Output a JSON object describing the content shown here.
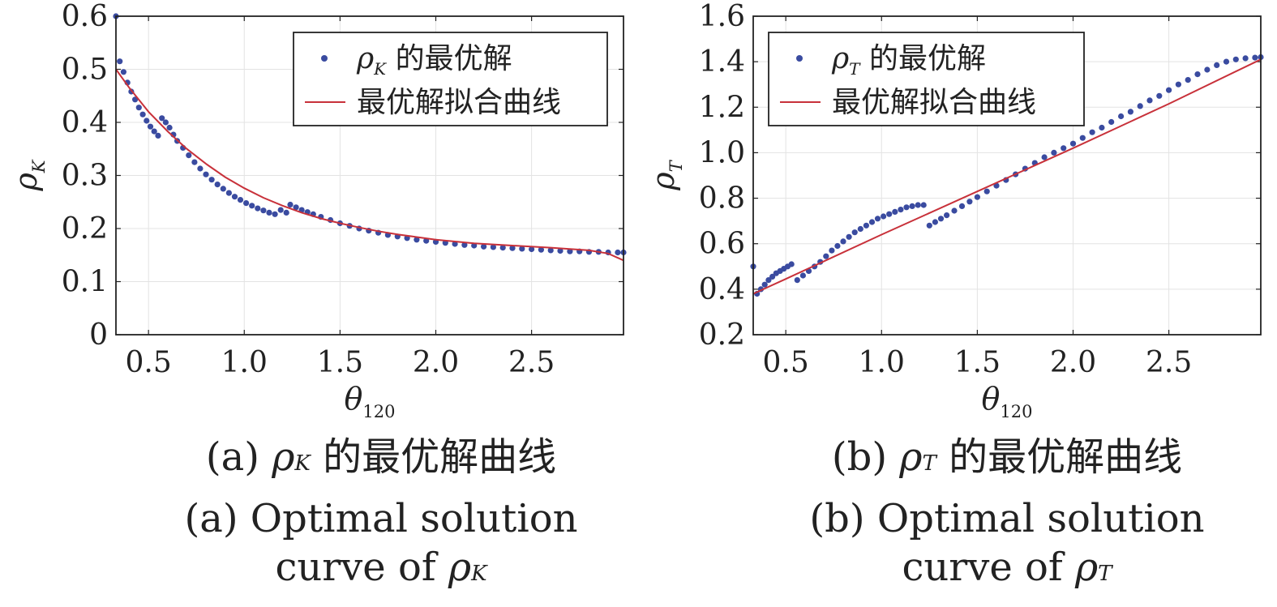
{
  "chart_data": [
    {
      "type": "scatter",
      "xlabel": "θ120",
      "ylabel": "ρK",
      "xlim": [
        0.33,
        2.98
      ],
      "ylim": [
        0,
        0.6
      ],
      "xticks": [
        "0.5",
        "1.0",
        "1.5",
        "2.0",
        "2.5"
      ],
      "yticks": [
        "0",
        "0.1",
        "0.2",
        "0.3",
        "0.4",
        "0.5",
        "0.6"
      ],
      "grid": true,
      "legend_position": "top-right",
      "legend": [
        "ρK 的最优解",
        "最优解拟合曲线"
      ],
      "series": [
        {
          "name": "ρK 的最优解",
          "kind": "scatter",
          "color": "#3a4ba0",
          "x": [
            0.33,
            0.35,
            0.37,
            0.39,
            0.41,
            0.43,
            0.45,
            0.47,
            0.49,
            0.51,
            0.53,
            0.55,
            0.57,
            0.59,
            0.61,
            0.63,
            0.65,
            0.68,
            0.71,
            0.74,
            0.77,
            0.8,
            0.83,
            0.86,
            0.89,
            0.92,
            0.95,
            0.98,
            1.01,
            1.04,
            1.07,
            1.1,
            1.13,
            1.16,
            1.19,
            1.22,
            1.24,
            1.27,
            1.3,
            1.33,
            1.36,
            1.4,
            1.45,
            1.5,
            1.55,
            1.6,
            1.65,
            1.7,
            1.75,
            1.8,
            1.85,
            1.9,
            1.95,
            2.0,
            2.05,
            2.1,
            2.15,
            2.2,
            2.25,
            2.3,
            2.35,
            2.4,
            2.45,
            2.5,
            2.55,
            2.6,
            2.65,
            2.7,
            2.75,
            2.8,
            2.85,
            2.9,
            2.95,
            2.98
          ],
          "y": [
            0.6,
            0.515,
            0.495,
            0.475,
            0.458,
            0.443,
            0.428,
            0.415,
            0.403,
            0.392,
            0.383,
            0.375,
            0.408,
            0.4,
            0.39,
            0.377,
            0.365,
            0.352,
            0.338,
            0.325,
            0.313,
            0.302,
            0.292,
            0.283,
            0.275,
            0.267,
            0.26,
            0.254,
            0.248,
            0.243,
            0.238,
            0.234,
            0.23,
            0.227,
            0.235,
            0.23,
            0.245,
            0.24,
            0.235,
            0.231,
            0.227,
            0.222,
            0.216,
            0.21,
            0.205,
            0.2,
            0.196,
            0.192,
            0.188,
            0.185,
            0.182,
            0.179,
            0.177,
            0.175,
            0.173,
            0.171,
            0.169,
            0.168,
            0.166,
            0.165,
            0.164,
            0.163,
            0.162,
            0.161,
            0.16,
            0.159,
            0.158,
            0.157,
            0.157,
            0.156,
            0.156,
            0.155,
            0.155,
            0.155
          ]
        },
        {
          "name": "最优解拟合曲线",
          "kind": "line",
          "color": "#c8313a",
          "x": [
            0.33,
            0.4,
            0.5,
            0.6,
            0.7,
            0.8,
            0.9,
            1.0,
            1.1,
            1.2,
            1.3,
            1.4,
            1.5,
            1.6,
            1.7,
            1.8,
            1.9,
            2.0,
            2.2,
            2.4,
            2.6,
            2.8,
            2.9,
            2.98
          ],
          "y": [
            0.5,
            0.465,
            0.42,
            0.383,
            0.35,
            0.322,
            0.297,
            0.276,
            0.258,
            0.243,
            0.23,
            0.219,
            0.21,
            0.202,
            0.195,
            0.189,
            0.184,
            0.179,
            0.172,
            0.168,
            0.164,
            0.159,
            0.153,
            0.14
          ]
        }
      ]
    },
    {
      "type": "scatter",
      "xlabel": "θ120",
      "ylabel": "ρT",
      "xlim": [
        0.33,
        2.98
      ],
      "ylim": [
        0.2,
        1.6
      ],
      "xticks": [
        "0.5",
        "1.0",
        "1.5",
        "2.0",
        "2.5"
      ],
      "yticks": [
        "0.2",
        "0.4",
        "0.6",
        "0.8",
        "1.0",
        "1.2",
        "1.4",
        "1.6"
      ],
      "grid": true,
      "legend_position": "top-left",
      "legend": [
        "ρT 的最优解",
        "最优解拟合曲线"
      ],
      "series": [
        {
          "name": "ρT 的最优解",
          "kind": "scatter",
          "color": "#3a4ba0",
          "x": [
            0.33,
            0.35,
            0.37,
            0.39,
            0.41,
            0.43,
            0.45,
            0.47,
            0.49,
            0.51,
            0.53,
            0.56,
            0.59,
            0.62,
            0.65,
            0.68,
            0.71,
            0.74,
            0.77,
            0.8,
            0.83,
            0.86,
            0.89,
            0.92,
            0.95,
            0.98,
            1.01,
            1.04,
            1.07,
            1.1,
            1.13,
            1.16,
            1.19,
            1.22,
            1.25,
            1.28,
            1.31,
            1.34,
            1.38,
            1.42,
            1.46,
            1.5,
            1.55,
            1.6,
            1.65,
            1.7,
            1.75,
            1.8,
            1.85,
            1.9,
            1.95,
            2.0,
            2.05,
            2.1,
            2.15,
            2.2,
            2.25,
            2.3,
            2.35,
            2.4,
            2.45,
            2.5,
            2.55,
            2.6,
            2.65,
            2.7,
            2.75,
            2.8,
            2.85,
            2.9,
            2.95,
            2.98
          ],
          "y": [
            0.5,
            0.38,
            0.4,
            0.42,
            0.44,
            0.455,
            0.47,
            0.48,
            0.49,
            0.5,
            0.51,
            0.44,
            0.46,
            0.48,
            0.5,
            0.52,
            0.545,
            0.57,
            0.59,
            0.61,
            0.63,
            0.65,
            0.665,
            0.68,
            0.695,
            0.71,
            0.72,
            0.73,
            0.74,
            0.75,
            0.76,
            0.765,
            0.77,
            0.77,
            0.68,
            0.695,
            0.71,
            0.725,
            0.745,
            0.765,
            0.785,
            0.805,
            0.83,
            0.855,
            0.88,
            0.905,
            0.93,
            0.955,
            0.98,
            1.0,
            1.02,
            1.04,
            1.065,
            1.09,
            1.11,
            1.135,
            1.16,
            1.18,
            1.205,
            1.23,
            1.25,
            1.275,
            1.3,
            1.32,
            1.345,
            1.365,
            1.385,
            1.4,
            1.41,
            1.415,
            1.418,
            1.42
          ]
        },
        {
          "name": "最优解拟合曲线",
          "kind": "line",
          "color": "#c8313a",
          "x": [
            0.33,
            0.5,
            1.0,
            1.5,
            2.0,
            2.5,
            2.98
          ],
          "y": [
            0.38,
            0.445,
            0.64,
            0.83,
            1.02,
            1.215,
            1.41
          ]
        }
      ]
    }
  ],
  "captions": {
    "a": {
      "zh_prefix": "(a) ",
      "zh_symbol": "ρ",
      "zh_sub": "K",
      "zh_suffix": " 的最优解曲线",
      "en_line1": "(a) Optimal solution",
      "en_line2_prefix": "curve of ",
      "en_symbol": "ρ",
      "en_sub": "K"
    },
    "b": {
      "zh_prefix": "(b) ",
      "zh_symbol": "ρ",
      "zh_sub": "T",
      "zh_suffix": " 的最优解曲线",
      "en_line1": "(b) Optimal solution",
      "en_line2_prefix": "curve of ",
      "en_symbol": "ρ",
      "en_sub": "T"
    }
  }
}
